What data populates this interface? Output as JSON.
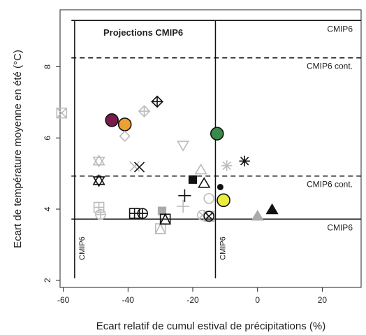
{
  "chart_data": {
    "type": "scatter",
    "title": "Projections CMIP6",
    "xlabel": "Ecart relatif de cumul estival de précipitations (%)",
    "ylabel": "Ecart de température moyenne en été (°C)",
    "xlim": [
      -61,
      32
    ],
    "ylim": [
      1.8,
      9.6
    ],
    "xticks": [
      -60,
      -40,
      -20,
      0,
      20
    ],
    "yticks": [
      2,
      4,
      6,
      8
    ],
    "grid": false,
    "reference_lines": [
      {
        "orient": "h",
        "value": 9.3,
        "style": "solid",
        "label": "CMIP6"
      },
      {
        "orient": "h",
        "value": 8.25,
        "style": "dashed",
        "label": "CMIP6 cont."
      },
      {
        "orient": "h",
        "value": 4.93,
        "style": "dashed",
        "label": "CMIP6 cont."
      },
      {
        "orient": "h",
        "value": 3.72,
        "style": "solid",
        "label": "CMIP6"
      },
      {
        "orient": "v",
        "value": -56.5,
        "style": "solid",
        "label": "CMIP6"
      },
      {
        "orient": "v",
        "value": -13,
        "style": "solid",
        "label": "CMIP6"
      }
    ],
    "points": [
      {
        "x": -60.5,
        "y": 6.7,
        "shape": "square-x",
        "color": "#bbbbbb"
      },
      {
        "x": -45,
        "y": 6.5,
        "shape": "circle",
        "color": "#7a1c4a",
        "edge": "#111111",
        "size": 9
      },
      {
        "x": -41,
        "y": 6.38,
        "shape": "circle",
        "color": "#f0a030",
        "edge": "#111111",
        "size": 9
      },
      {
        "x": -41,
        "y": 6.05,
        "shape": "diamond",
        "color": "#bbbbbb"
      },
      {
        "x": -35,
        "y": 6.75,
        "shape": "diamond-plus",
        "color": "#bbbbbb"
      },
      {
        "x": -31,
        "y": 7.02,
        "shape": "diamond-plus",
        "color": "#111111"
      },
      {
        "x": -12.5,
        "y": 6.12,
        "shape": "circle",
        "color": "#3a8a4a",
        "edge": "#111111",
        "size": 9
      },
      {
        "x": -23,
        "y": 5.8,
        "shape": "triangle-down",
        "color": "#bbbbbb"
      },
      {
        "x": -49,
        "y": 5.35,
        "shape": "star-of-david",
        "color": "#bbbbbb"
      },
      {
        "x": -38,
        "y": 5.2,
        "shape": "x",
        "color": "#bbbbbb"
      },
      {
        "x": -36.5,
        "y": 5.18,
        "shape": "x",
        "color": "#111111"
      },
      {
        "x": -9.5,
        "y": 5.22,
        "shape": "asterisk",
        "color": "#bbbbbb"
      },
      {
        "x": -4,
        "y": 5.35,
        "shape": "asterisk",
        "color": "#111111"
      },
      {
        "x": -49,
        "y": 4.8,
        "shape": "star-of-david",
        "color": "#111111"
      },
      {
        "x": -20,
        "y": 4.83,
        "shape": "square",
        "color": "#111111"
      },
      {
        "x": -17.5,
        "y": 5.1,
        "shape": "triangle",
        "color": "#bbbbbb"
      },
      {
        "x": -16.5,
        "y": 4.72,
        "shape": "triangle",
        "color": "#111111"
      },
      {
        "x": -11.5,
        "y": 4.62,
        "shape": "circle",
        "color": "#111111",
        "size": 4.5
      },
      {
        "x": -15,
        "y": 4.3,
        "shape": "circle-open",
        "color": "#bbbbbb"
      },
      {
        "x": -10.5,
        "y": 4.25,
        "shape": "circle",
        "color": "#ecec40",
        "edge": "#111111",
        "size": 9
      },
      {
        "x": -22.5,
        "y": 4.38,
        "shape": "plus",
        "color": "#111111"
      },
      {
        "x": -23,
        "y": 4.08,
        "shape": "plus",
        "color": "#bbbbbb"
      },
      {
        "x": -49,
        "y": 4.05,
        "shape": "square-plus",
        "color": "#bbbbbb"
      },
      {
        "x": -48.5,
        "y": 3.85,
        "shape": "circle-plus",
        "color": "#bbbbbb"
      },
      {
        "x": -38,
        "y": 3.88,
        "shape": "square-plus",
        "color": "#111111"
      },
      {
        "x": -35.5,
        "y": 3.88,
        "shape": "circle-plus",
        "color": "#111111"
      },
      {
        "x": -29.5,
        "y": 3.95,
        "shape": "square",
        "color": "#aaaaaa"
      },
      {
        "x": -30,
        "y": 3.45,
        "shape": "square-tri",
        "color": "#bbbbbb"
      },
      {
        "x": -28.5,
        "y": 3.72,
        "shape": "square-tri",
        "color": "#111111"
      },
      {
        "x": -17,
        "y": 3.83,
        "shape": "circle-x",
        "color": "#bbbbbb"
      },
      {
        "x": -15,
        "y": 3.8,
        "shape": "square-x",
        "color": "#bbbbbb"
      },
      {
        "x": -15,
        "y": 3.8,
        "shape": "circle-x",
        "color": "#111111"
      },
      {
        "x": 0,
        "y": 3.8,
        "shape": "triangle",
        "color": "#aaaaaa",
        "fill": true
      },
      {
        "x": 4.5,
        "y": 3.98,
        "shape": "triangle",
        "color": "#111111",
        "fill": true
      }
    ]
  }
}
